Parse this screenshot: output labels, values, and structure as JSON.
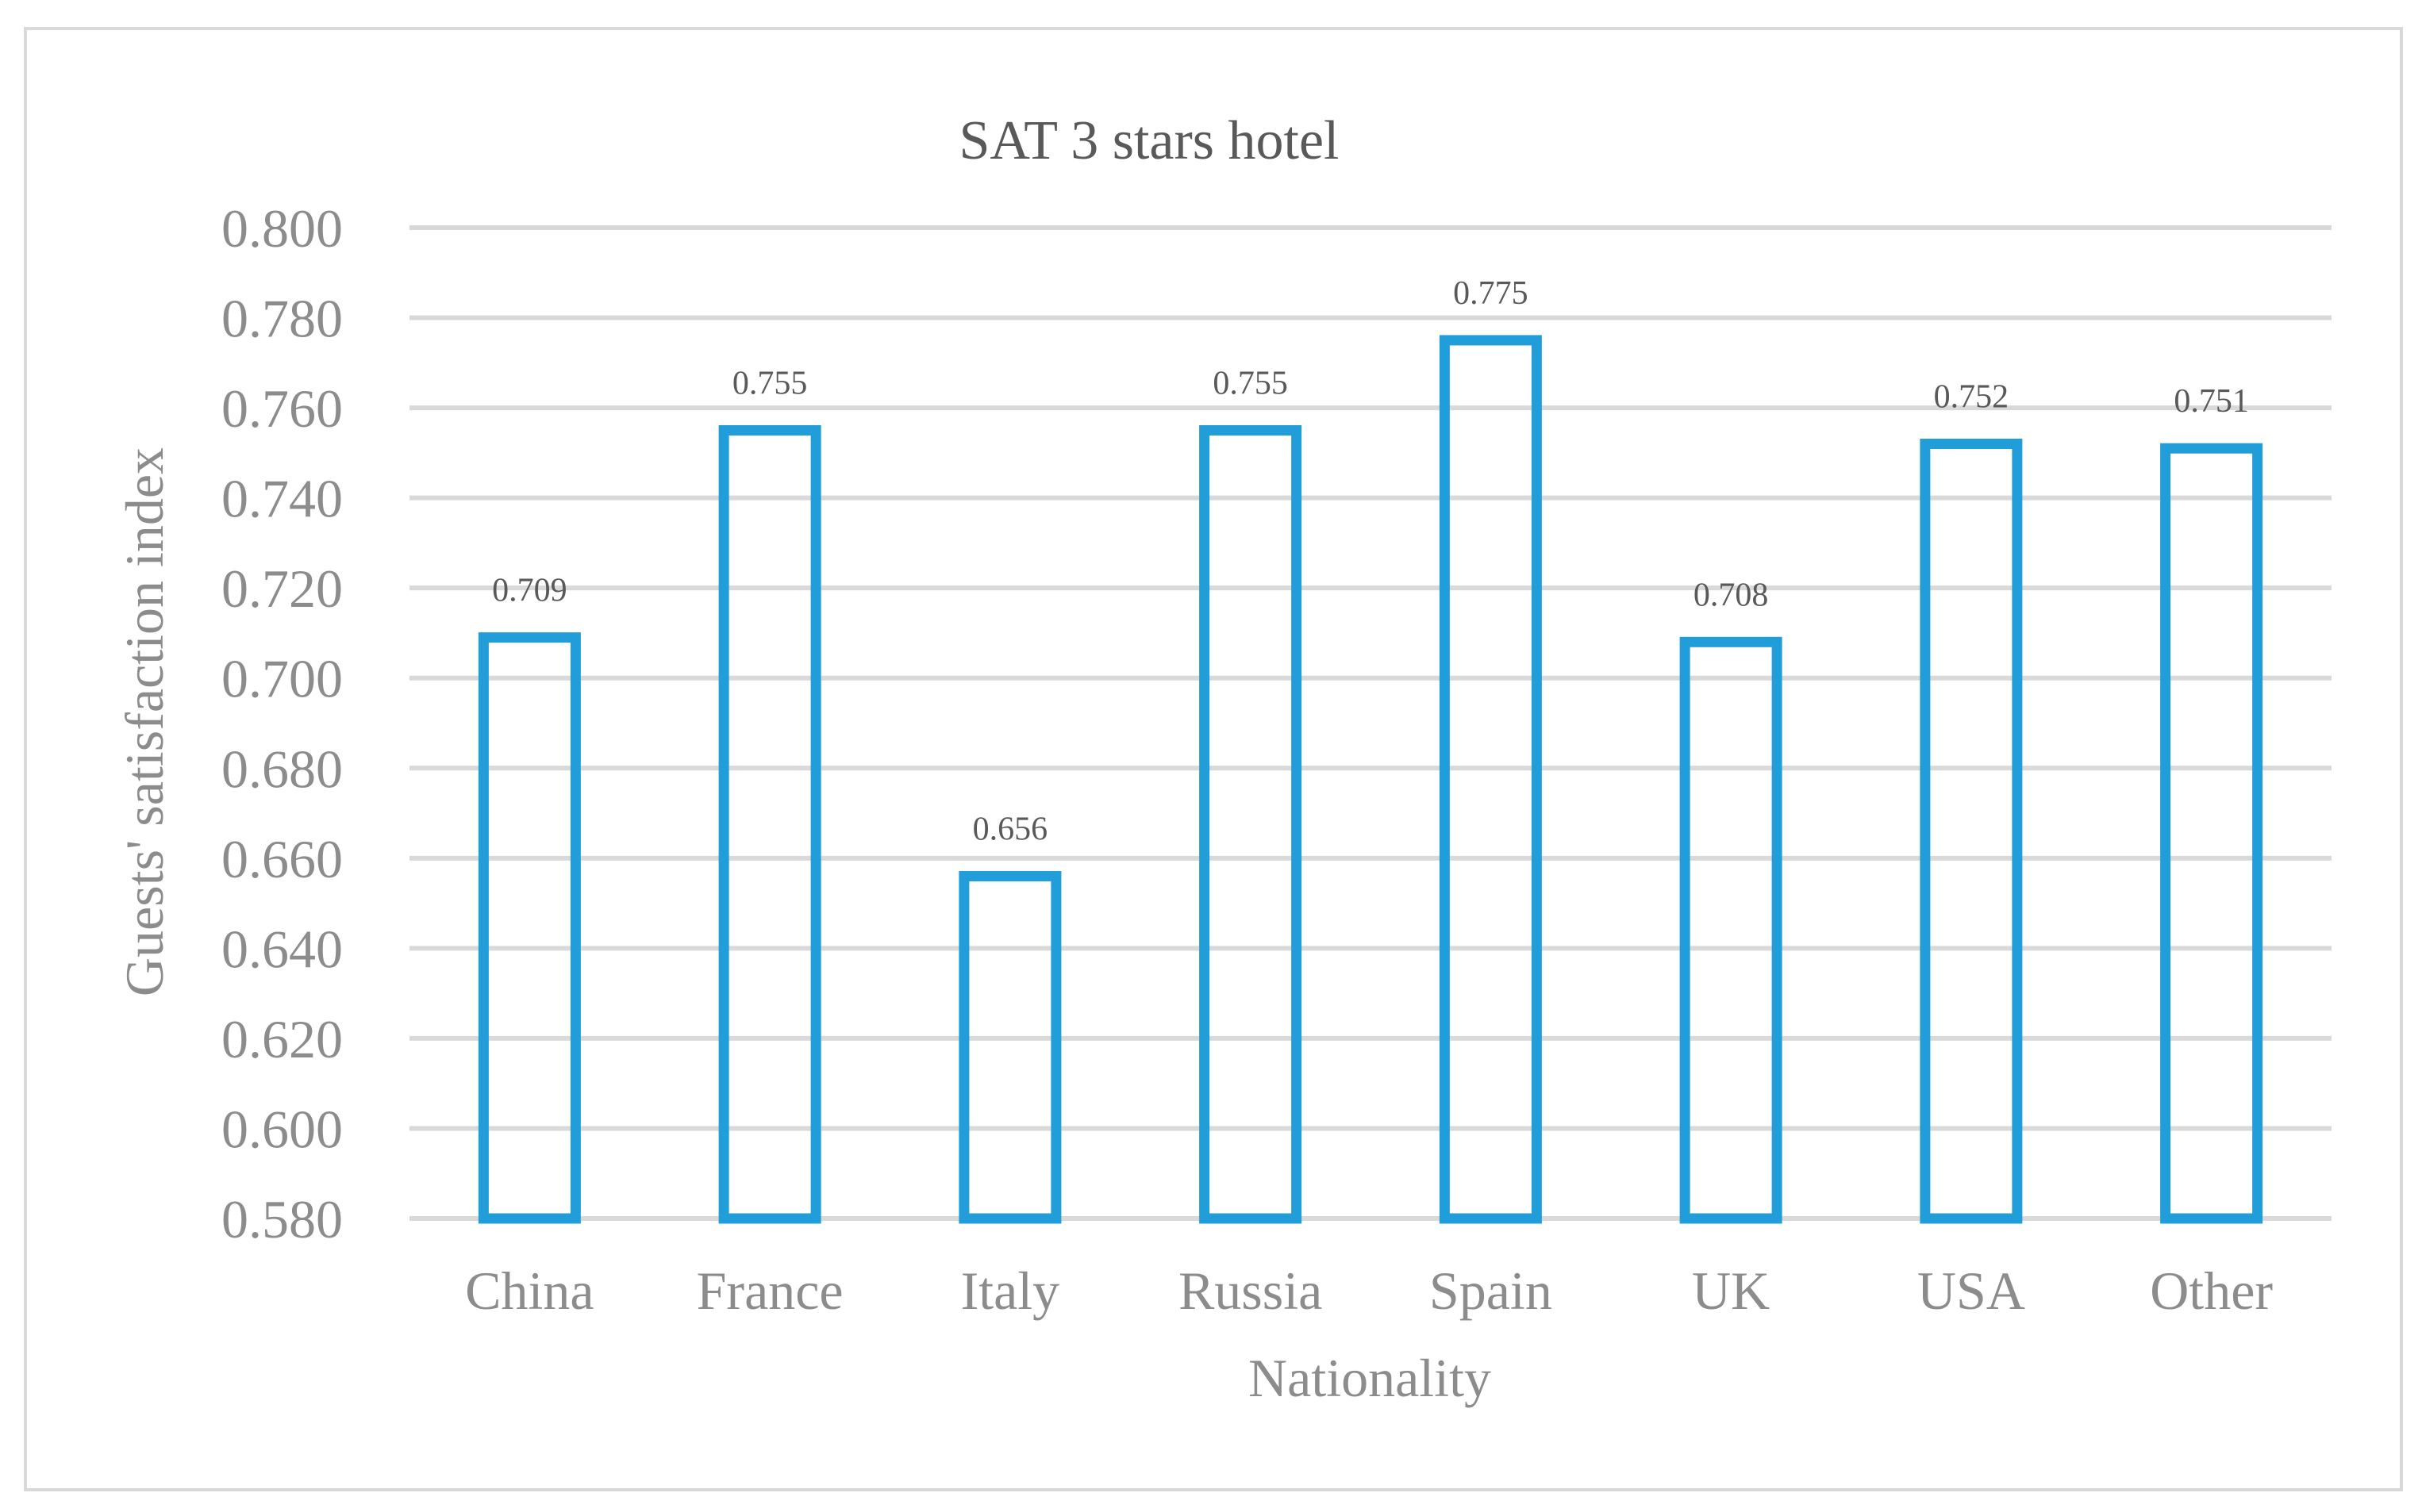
{
  "chart_data": {
    "type": "bar",
    "title": "SAT 3 stars hotel",
    "xlabel": "Nationality",
    "ylabel": "Guests' satisfaction index",
    "categories": [
      "China",
      "France",
      "Italy",
      "Russia",
      "Spain",
      "UK",
      "USA",
      "Other"
    ],
    "values": [
      0.709,
      0.755,
      0.656,
      0.755,
      0.775,
      0.708,
      0.752,
      0.751
    ],
    "data_labels": [
      "0.709",
      "0.755",
      "0.656",
      "0.755",
      "0.775",
      "0.708",
      "0.752",
      "0.751"
    ],
    "ylim": [
      0.58,
      0.8
    ],
    "yticks": [
      "0.580",
      "0.600",
      "0.620",
      "0.640",
      "0.660",
      "0.680",
      "0.700",
      "0.720",
      "0.740",
      "0.760",
      "0.780",
      "0.800"
    ],
    "grid": true,
    "legend": "none",
    "bar_style": "outline",
    "bar_color": "#219ed9"
  }
}
